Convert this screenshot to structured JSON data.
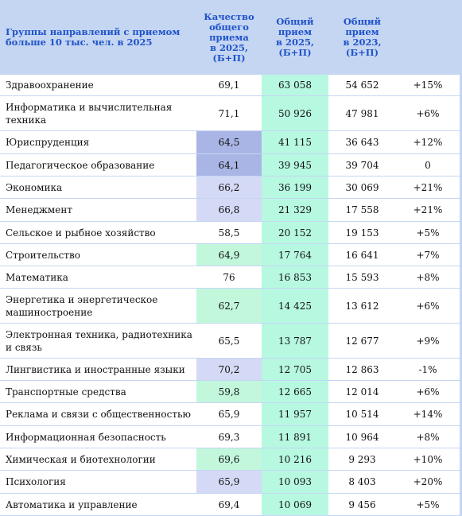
{
  "header": {
    "col0": "Группы направлений с приемом больше 10 тыс. чел. в 2025",
    "col1": "Качество\nобщего\nприема\nв 2025,\n(Б+П)",
    "col2": "Общий\nприем\nв 2025,\n(Б+П)",
    "col3": "Общий\nприем\nв 2023,\n(Б+П)",
    "col4": ""
  },
  "colors": {
    "header_bg": "#c5d6f3",
    "header_text": "#1f53c8",
    "quality_high": "#c2f7dc",
    "quality_low_dark": "#a9b5e4",
    "quality_low_light": "#d4d9f5",
    "admission_2025": "#b7f8e1"
  },
  "rows": [
    {
      "name": "Здравоохранение",
      "quality": "69,1",
      "adm2025": "63 058",
      "adm2023": "54 652",
      "change": "+15%",
      "qshade": "none"
    },
    {
      "name": "Информатика и вычислительная техника",
      "quality": "71,1",
      "adm2025": "50 926",
      "adm2023": "47 981",
      "change": "+6%",
      "qshade": "none"
    },
    {
      "name": "Юриспруденция",
      "quality": "64,5",
      "adm2025": "41 115",
      "adm2023": "36 643",
      "change": "+12%",
      "qshade": "dark"
    },
    {
      "name": "Педагогическое образование",
      "quality": "64,1",
      "adm2025": "39 945",
      "adm2023": "39 704",
      "change": "0",
      "qshade": "dark"
    },
    {
      "name": "Экономика",
      "quality": "66,2",
      "adm2025": "36 199",
      "adm2023": "30 069",
      "change": "+21%",
      "qshade": "light"
    },
    {
      "name": "Менеджмент",
      "quality": "66,8",
      "adm2025": "21 329",
      "adm2023": "17 558",
      "change": "+21%",
      "qshade": "light"
    },
    {
      "name": "Сельское и рыбное хозяйство",
      "quality": "58,5",
      "adm2025": "20 152",
      "adm2023": "19 153",
      "change": "+5%",
      "qshade": "none"
    },
    {
      "name": "Строительство",
      "quality": "64,9",
      "adm2025": "17 764",
      "adm2023": "16 641",
      "change": "+7%",
      "qshade": "green"
    },
    {
      "name": "Математика",
      "quality": "76",
      "adm2025": "16 853",
      "adm2023": "15 593",
      "change": "+8%",
      "qshade": "none"
    },
    {
      "name": "Энергетика и энергетическое машиностроение",
      "quality": "62,7",
      "adm2025": "14 425",
      "adm2023": "13 612",
      "change": "+6%",
      "qshade": "green"
    },
    {
      "name": "Электронная техника, радиотехника и связь",
      "quality": "65,5",
      "adm2025": "13 787",
      "adm2023": "12 677",
      "change": "+9%",
      "qshade": "none"
    },
    {
      "name": "Лингвистика и иностранные языки",
      "quality": "70,2",
      "adm2025": "12 705",
      "adm2023": "12 863",
      "change": "-1%",
      "qshade": "light"
    },
    {
      "name": "Транспортные средства",
      "quality": "59,8",
      "adm2025": "12 665",
      "adm2023": "12 014",
      "change": "+6%",
      "qshade": "green"
    },
    {
      "name": "Реклама и связи с общественностью",
      "quality": "65,9",
      "adm2025": "11 957",
      "adm2023": "10 514",
      "change": "+14%",
      "qshade": "none"
    },
    {
      "name": "Информационная безопасность",
      "quality": "69,3",
      "adm2025": "11 891",
      "adm2023": "10 964",
      "change": "+8%",
      "qshade": "none"
    },
    {
      "name": "Химическая и биотехнологии",
      "quality": "69,6",
      "adm2025": "10 216",
      "adm2023": "9 293",
      "change": "+10%",
      "qshade": "green"
    },
    {
      "name": "Психология",
      "quality": "65,9",
      "adm2025": "10 093",
      "adm2023": "8 403",
      "change": "+20%",
      "qshade": "light"
    },
    {
      "name": "Автоматика и управление",
      "quality": "69,4",
      "adm2025": "10 069",
      "adm2023": "9 456",
      "change": "+5%",
      "qshade": "none"
    }
  ]
}
